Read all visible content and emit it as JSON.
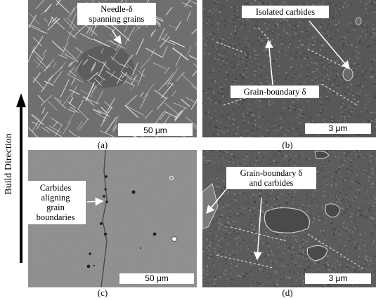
{
  "panels": {
    "a": {
      "label": "(a)",
      "scale": "50 μm",
      "callout": [
        "Needle-δ",
        "spanning grains"
      ]
    },
    "b": {
      "label": "(b)",
      "scale": "3 μm",
      "callout_top": "Isolated carbides",
      "callout_mid": "Grain-boundary δ"
    },
    "c": {
      "label": "(c)",
      "scale": "50 μm",
      "callout": [
        "Carbides",
        "aligning",
        "grain",
        "boundaries"
      ]
    },
    "d": {
      "label": "(d)",
      "scale": "3 μm",
      "callout": [
        "Grain-boundary δ",
        "and carbides"
      ]
    }
  },
  "build_direction": "Build Direction"
}
